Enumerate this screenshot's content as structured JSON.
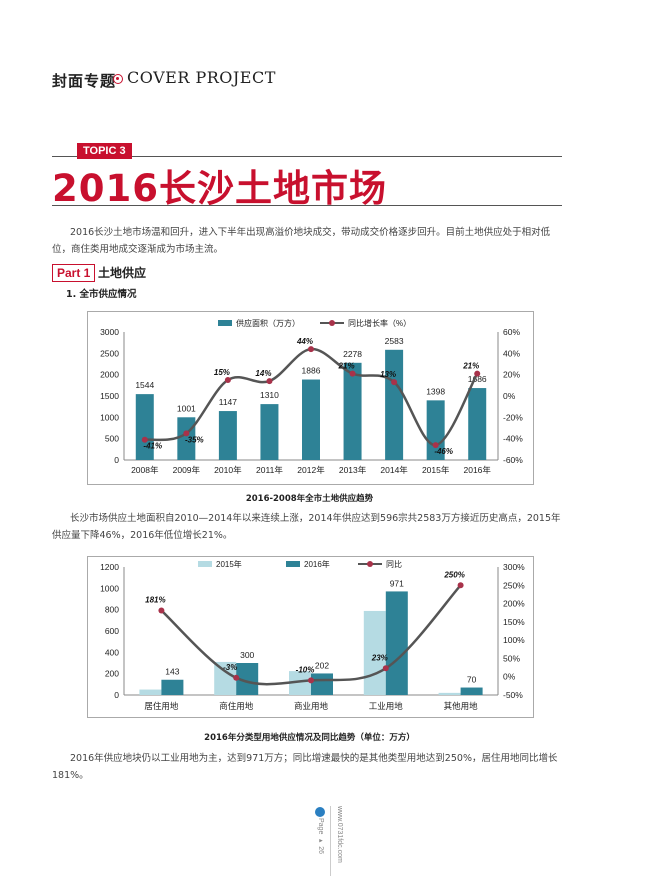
{
  "header": {
    "section_cn": "封面专题",
    "section_en": "COVER PROJECT"
  },
  "topic": {
    "badge": "TOPIC 3",
    "title": "2016长沙土地市场"
  },
  "intro": "2016长沙土地市场温和回升，进入下半年出现高溢价地块成交，带动成交价格逐步回升。目前土地供应处于相对低位，商住类用地成交逐渐成为市场主流。",
  "part": {
    "label": "Part 1",
    "title": "土地供应",
    "sub": "1. 全市供应情况"
  },
  "chart1_caption": "2016-2008年全市土地供应趋势",
  "para2": "长沙市场供应土地面积自2010—2014年以来连续上涨，2014年供应达到596宗共2583万方接近历史高点，2015年供应量下降46%，2016年低位增长21%。",
  "chart2_caption": "2016年分类型用地供应情况及同比趋势（单位：万方）",
  "para3": "2016年供应地块仍以工业用地为主，达到971万方；同比增速最快的是其他类型用地达到250%，居住用地同比增长181%。",
  "footer": {
    "page": "Page ▸ 26",
    "site": "www.0731fdc.com"
  },
  "colors": {
    "accent_red": "#c8102e",
    "bar_teal": "#2e8296",
    "bar_light": "#b5dbe3",
    "line_gray": "#555555",
    "marker": "#a8324a"
  },
  "chart_data": [
    {
      "type": "bar",
      "title": "",
      "categories": [
        "2008年",
        "2009年",
        "2010年",
        "2011年",
        "2012年",
        "2013年",
        "2014年",
        "2015年",
        "2016年"
      ],
      "series": [
        {
          "name": "供应面积（万方）",
          "axis": "left",
          "values": [
            1544,
            1001,
            1147,
            1310,
            1886,
            2278,
            2583,
            1398,
            1686
          ]
        },
        {
          "name": "同比增长率（%）",
          "type": "line",
          "axis": "right",
          "values": [
            -41,
            -35,
            15,
            14,
            44,
            21,
            13,
            -46,
            21
          ],
          "labels": [
            "-41%",
            "-35%",
            "15%",
            "14%",
            "44%",
            "21%",
            "13%",
            "-46%",
            "21%"
          ]
        }
      ],
      "ylim": [
        0,
        3000
      ],
      "yticks": [
        "0",
        "500",
        "1000",
        "1500",
        "2000",
        "2500",
        "3000"
      ],
      "y2lim": [
        -60,
        60
      ],
      "y2ticks": [
        "-60%",
        "-40%",
        "-20%",
        "0%",
        "20%",
        "40%",
        "60%"
      ],
      "legend": "top"
    },
    {
      "type": "bar",
      "title": "",
      "categories": [
        "居住用地",
        "商住用地",
        "商业用地",
        "工业用地",
        "其他用地"
      ],
      "series": [
        {
          "name": "2015年",
          "axis": "left",
          "values": [
            51,
            310,
            224,
            788,
            20
          ]
        },
        {
          "name": "2016年",
          "axis": "left",
          "values": [
            143,
            300,
            202,
            971,
            70
          ]
        },
        {
          "name": "同比",
          "type": "line",
          "axis": "right",
          "values": [
            181,
            -3,
            -10,
            23,
            250
          ],
          "labels": [
            "181%",
            "-3%",
            "-10%",
            "23%",
            "250%"
          ]
        }
      ],
      "ylim": [
        0,
        1200
      ],
      "yticks": [
        "0",
        "200",
        "400",
        "600",
        "800",
        "1000",
        "1200"
      ],
      "y2lim": [
        -50,
        300
      ],
      "y2ticks": [
        "-50%",
        "0%",
        "50%",
        "100%",
        "150%",
        "200%",
        "250%",
        "300%"
      ],
      "legend": "top"
    }
  ]
}
